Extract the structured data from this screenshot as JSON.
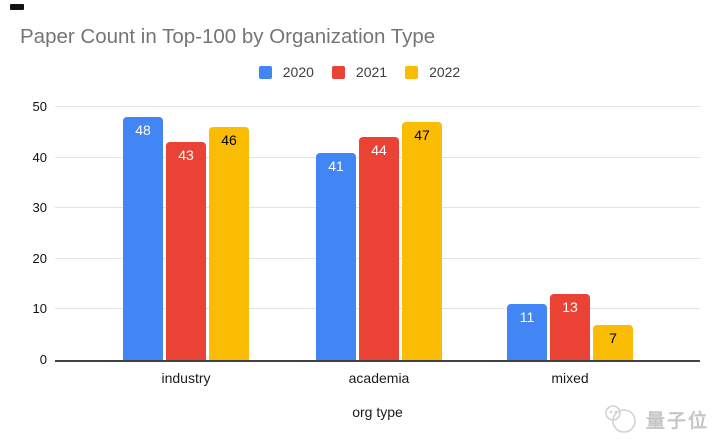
{
  "chart_data": {
    "type": "bar",
    "title": "Paper Count in Top-100 by Organization Type",
    "categories": [
      "industry",
      "academia",
      "mixed"
    ],
    "series": [
      {
        "name": "2020",
        "color": "#4285F4",
        "label_color": "#ffffff",
        "values": [
          48,
          41,
          11
        ]
      },
      {
        "name": "2021",
        "color": "#EA4335",
        "label_color": "#ffffff",
        "values": [
          43,
          44,
          13
        ]
      },
      {
        "name": "2022",
        "color": "#FBBC04",
        "label_color": "#000000",
        "values": [
          46,
          47,
          7
        ]
      }
    ],
    "xlabel": "org type",
    "ylabel": "",
    "ylim": [
      0,
      50
    ],
    "yticks": [
      0,
      10,
      20,
      30,
      40,
      50
    ],
    "grid": true,
    "legend_position": "top",
    "data_labels": true
  },
  "colors": {
    "title_text": "#757575",
    "axis_line": "#424242",
    "gridline": "#e3e3e3",
    "tick_label": "#111111",
    "watermark": "#c6c6c6"
  },
  "watermark": {
    "text": "量子位",
    "logo_icon": "qbitai-logo"
  }
}
